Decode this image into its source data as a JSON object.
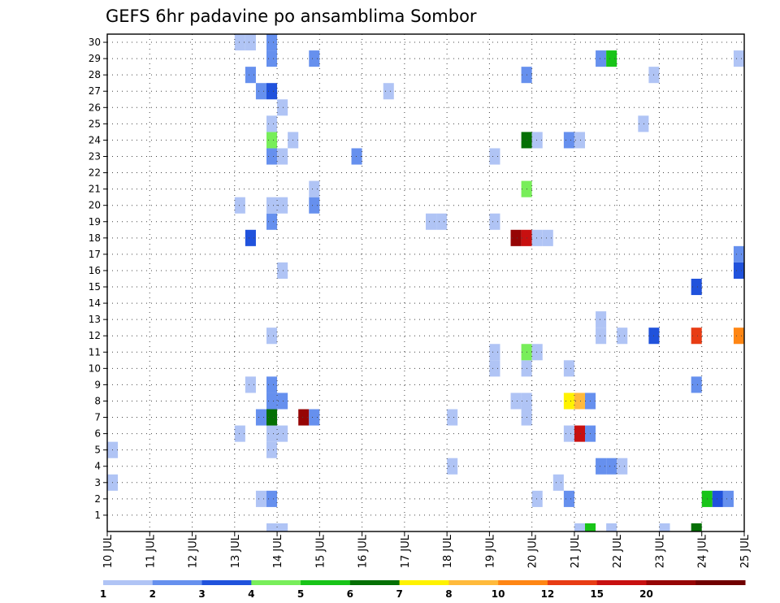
{
  "chart_data": {
    "type": "heatmap",
    "title": "GEFS 6hr padavine po ansamblima Sombor",
    "x_ticks": [
      "10 JUL",
      "11 JUL",
      "12 JUL",
      "13 JUL",
      "14 JUL",
      "15 JUL",
      "16 JUL",
      "17 JUL",
      "18 JUL",
      "19 JUL",
      "20 JUL",
      "21 JUL",
      "22 JUL",
      "23 JUL",
      "24 JUL",
      "25 JUL"
    ],
    "y_ticks": [
      "1",
      "2",
      "3",
      "4",
      "5",
      "6",
      "7",
      "8",
      "9",
      "10",
      "11",
      "12",
      "13",
      "14",
      "15",
      "16",
      "17",
      "18",
      "19",
      "20",
      "21",
      "22",
      "23",
      "24",
      "25",
      "26",
      "27",
      "28",
      "29",
      "30"
    ],
    "x_range": [
      "10 JUL",
      "25 JUL"
    ],
    "y_range": [
      0,
      30
    ],
    "grid": true,
    "cell_hours": 6,
    "legend": {
      "position": "bottom",
      "colors": [
        "#b0c4f5",
        "#6690ee",
        "#2052dc",
        "#78ee5a",
        "#18c418",
        "#057005",
        "#fff200",
        "#ffba3c",
        "#ff8614",
        "#e83c14",
        "#c81010",
        "#960505",
        "#700000"
      ],
      "labels": [
        "1",
        "2",
        "3",
        "4",
        "5",
        "6",
        "7",
        "8",
        "10",
        "12",
        "15",
        "20"
      ]
    },
    "points": [
      {
        "x": "10 JUL 00z",
        "m": 3,
        "v": 1
      },
      {
        "x": "10 JUL 00z",
        "m": 5,
        "v": 1
      },
      {
        "x": "13 JUL 00z",
        "m": 6,
        "v": 1
      },
      {
        "x": "13 JUL 00z",
        "m": 20,
        "v": 1
      },
      {
        "x": "13 JUL 00z",
        "m": 30,
        "v": 1
      },
      {
        "x": "13 JUL 06z",
        "m": 30,
        "v": 1
      },
      {
        "x": "13 JUL 06z",
        "m": 9,
        "v": 1
      },
      {
        "x": "13 JUL 06z",
        "m": 18,
        "v": 3
      },
      {
        "x": "13 JUL 06z",
        "m": 28,
        "v": 2
      },
      {
        "x": "13 JUL 12z",
        "m": 2,
        "v": 1
      },
      {
        "x": "13 JUL 12z",
        "m": 7,
        "v": 2
      },
      {
        "x": "13 JUL 12z",
        "m": 27,
        "v": 2
      },
      {
        "x": "13 JUL 18z",
        "m": 0,
        "v": 1
      },
      {
        "x": "13 JUL 18z",
        "m": 2,
        "v": 2
      },
      {
        "x": "13 JUL 18z",
        "m": 5,
        "v": 1
      },
      {
        "x": "13 JUL 18z",
        "m": 6,
        "v": 1
      },
      {
        "x": "13 JUL 18z",
        "m": 7,
        "v": 6
      },
      {
        "x": "13 JUL 18z",
        "m": 8,
        "v": 2
      },
      {
        "x": "13 JUL 18z",
        "m": 9,
        "v": 2
      },
      {
        "x": "13 JUL 18z",
        "m": 12,
        "v": 1
      },
      {
        "x": "13 JUL 18z",
        "m": 19,
        "v": 2
      },
      {
        "x": "13 JUL 18z",
        "m": 20,
        "v": 1
      },
      {
        "x": "13 JUL 18z",
        "m": 23,
        "v": 2
      },
      {
        "x": "13 JUL 18z",
        "m": 24,
        "v": 4
      },
      {
        "x": "13 JUL 18z",
        "m": 25,
        "v": 1
      },
      {
        "x": "13 JUL 18z",
        "m": 27,
        "v": 3
      },
      {
        "x": "13 JUL 18z",
        "m": 29,
        "v": 2
      },
      {
        "x": "13 JUL 18z",
        "m": 30,
        "v": 2
      },
      {
        "x": "14 JUL 00z",
        "m": 0,
        "v": 1
      },
      {
        "x": "14 JUL 00z",
        "m": 6,
        "v": 1
      },
      {
        "x": "14 JUL 00z",
        "m": 8,
        "v": 2
      },
      {
        "x": "14 JUL 00z",
        "m": 16,
        "v": 1
      },
      {
        "x": "14 JUL 00z",
        "m": 20,
        "v": 1
      },
      {
        "x": "14 JUL 00z",
        "m": 23,
        "v": 1
      },
      {
        "x": "14 JUL 00z",
        "m": 26,
        "v": 1
      },
      {
        "x": "14 JUL 06z",
        "m": 24,
        "v": 1
      },
      {
        "x": "14 JUL 12z",
        "m": 7,
        "v": 20
      },
      {
        "x": "14 JUL 18z",
        "m": 7,
        "v": 2
      },
      {
        "x": "14 JUL 18z",
        "m": 20,
        "v": 2
      },
      {
        "x": "14 JUL 18z",
        "m": 21,
        "v": 1
      },
      {
        "x": "14 JUL 18z",
        "m": 29,
        "v": 2
      },
      {
        "x": "15 JUL 18z",
        "m": 23,
        "v": 2
      },
      {
        "x": "16 JUL 12z",
        "m": 27,
        "v": 1
      },
      {
        "x": "17 JUL 12z",
        "m": 19,
        "v": 1
      },
      {
        "x": "17 JUL 18z",
        "m": 19,
        "v": 1
      },
      {
        "x": "18 JUL 00z",
        "m": 4,
        "v": 1
      },
      {
        "x": "18 JUL 00z",
        "m": 7,
        "v": 1
      },
      {
        "x": "19 JUL 00z",
        "m": 10,
        "v": 1
      },
      {
        "x": "19 JUL 00z",
        "m": 11,
        "v": 1
      },
      {
        "x": "19 JUL 00z",
        "m": 19,
        "v": 1
      },
      {
        "x": "19 JUL 00z",
        "m": 23,
        "v": 1
      },
      {
        "x": "19 JUL 12z",
        "m": 8,
        "v": 1
      },
      {
        "x": "19 JUL 12z",
        "m": 18,
        "v": 20
      },
      {
        "x": "19 JUL 18z",
        "m": 7,
        "v": 1
      },
      {
        "x": "19 JUL 18z",
        "m": 8,
        "v": 1
      },
      {
        "x": "19 JUL 18z",
        "m": 10,
        "v": 1
      },
      {
        "x": "19 JUL 18z",
        "m": 11,
        "v": 4
      },
      {
        "x": "19 JUL 18z",
        "m": 18,
        "v": 15
      },
      {
        "x": "19 JUL 18z",
        "m": 21,
        "v": 4
      },
      {
        "x": "19 JUL 18z",
        "m": 24,
        "v": 6
      },
      {
        "x": "19 JUL 18z",
        "m": 28,
        "v": 2
      },
      {
        "x": "20 JUL 00z",
        "m": 2,
        "v": 1
      },
      {
        "x": "20 JUL 00z",
        "m": 11,
        "v": 1
      },
      {
        "x": "20 JUL 00z",
        "m": 18,
        "v": 1
      },
      {
        "x": "20 JUL 00z",
        "m": 24,
        "v": 1
      },
      {
        "x": "20 JUL 06z",
        "m": 18,
        "v": 1
      },
      {
        "x": "20 JUL 12z",
        "m": 3,
        "v": 1
      },
      {
        "x": "20 JUL 18z",
        "m": 2,
        "v": 2
      },
      {
        "x": "20 JUL 18z",
        "m": 6,
        "v": 1
      },
      {
        "x": "20 JUL 18z",
        "m": 8,
        "v": 7
      },
      {
        "x": "20 JUL 18z",
        "m": 10,
        "v": 1
      },
      {
        "x": "20 JUL 18z",
        "m": 24,
        "v": 2
      },
      {
        "x": "21 JUL 00z",
        "m": 0,
        "v": 1
      },
      {
        "x": "21 JUL 00z",
        "m": 6,
        "v": 15
      },
      {
        "x": "21 JUL 00z",
        "m": 8,
        "v": 8
      },
      {
        "x": "21 JUL 00z",
        "m": 24,
        "v": 1
      },
      {
        "x": "21 JUL 06z",
        "m": 0,
        "v": 5
      },
      {
        "x": "21 JUL 06z",
        "m": 6,
        "v": 2
      },
      {
        "x": "21 JUL 06z",
        "m": 8,
        "v": 2
      },
      {
        "x": "21 JUL 12z",
        "m": 4,
        "v": 2
      },
      {
        "x": "21 JUL 12z",
        "m": 12,
        "v": 1
      },
      {
        "x": "21 JUL 12z",
        "m": 13,
        "v": 1
      },
      {
        "x": "21 JUL 12z",
        "m": 29,
        "v": 2
      },
      {
        "x": "21 JUL 18z",
        "m": 0,
        "v": 1
      },
      {
        "x": "21 JUL 18z",
        "m": 4,
        "v": 2
      },
      {
        "x": "21 JUL 18z",
        "m": 29,
        "v": 5
      },
      {
        "x": "22 JUL 00z",
        "m": 4,
        "v": 1
      },
      {
        "x": "22 JUL 00z",
        "m": 12,
        "v": 1
      },
      {
        "x": "22 JUL 12z",
        "m": 25,
        "v": 1
      },
      {
        "x": "22 JUL 18z",
        "m": 12,
        "v": 3
      },
      {
        "x": "22 JUL 18z",
        "m": 28,
        "v": 1
      },
      {
        "x": "23 JUL 00z",
        "m": 0,
        "v": 1
      },
      {
        "x": "23 JUL 18z",
        "m": 0,
        "v": 6
      },
      {
        "x": "23 JUL 18z",
        "m": 9,
        "v": 2
      },
      {
        "x": "23 JUL 18z",
        "m": 12,
        "v": 12
      },
      {
        "x": "23 JUL 18z",
        "m": 15,
        "v": 3
      },
      {
        "x": "24 JUL 00z",
        "m": 2,
        "v": 5
      },
      {
        "x": "24 JUL 06z",
        "m": 2,
        "v": 3
      },
      {
        "x": "24 JUL 12z",
        "m": 2,
        "v": 2
      },
      {
        "x": "24 JUL 18z",
        "m": 12,
        "v": 10
      },
      {
        "x": "24 JUL 18z",
        "m": 16,
        "v": 3
      },
      {
        "x": "24 JUL 18z",
        "m": 17,
        "v": 2
      },
      {
        "x": "24 JUL 18z",
        "m": 29,
        "v": 1
      }
    ]
  }
}
